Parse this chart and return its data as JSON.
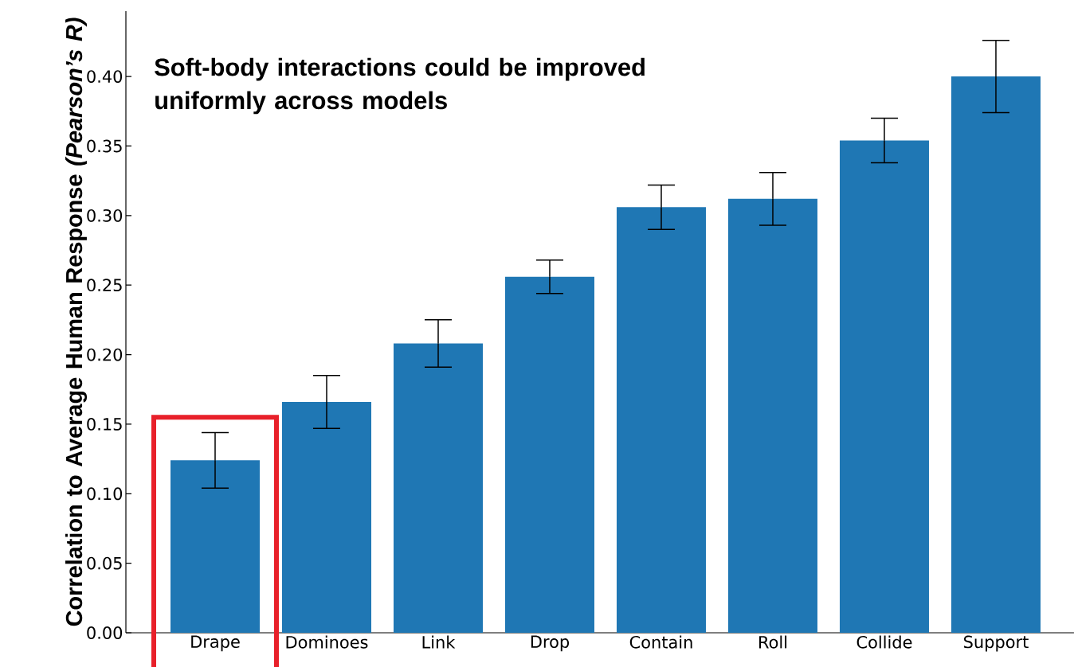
{
  "chart_data": {
    "type": "bar",
    "categories": [
      "Drape",
      "Dominoes",
      "Link",
      "Drop",
      "Contain",
      "Roll",
      "Collide",
      "Support"
    ],
    "values": [
      0.124,
      0.166,
      0.208,
      0.256,
      0.306,
      0.312,
      0.354,
      0.4
    ],
    "errors": [
      0.02,
      0.019,
      0.017,
      0.012,
      0.016,
      0.019,
      0.016,
      0.026
    ],
    "color": "#1f77b4",
    "ylabel": "Correlation to Average Human Response *(Pearson’s R)*",
    "annotations": [
      "Soft-body interactions could be improved uniformly across models"
    ],
    "ylim": [
      0,
      0.447
    ],
    "yticks": [
      {
        "value": 0,
        "label": "0.00"
      },
      {
        "value": 0.05,
        "label": "0.05"
      },
      {
        "value": 0.1,
        "label": "0.10"
      },
      {
        "value": 0.15,
        "label": "0.15"
      },
      {
        "value": 0.2,
        "label": "0.20"
      },
      {
        "value": 0.25,
        "label": "0.25"
      },
      {
        "value": 0.3,
        "label": "0.30"
      },
      {
        "value": 0.35,
        "label": "0.35"
      },
      {
        "value": 0.4,
        "label": "0.40"
      }
    ],
    "grid": false
  }
}
